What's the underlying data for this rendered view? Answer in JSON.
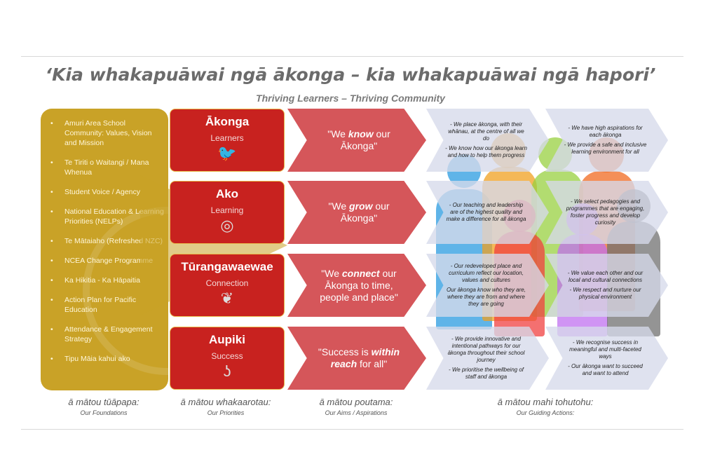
{
  "title": "‘Kia whakapuāwai ngā ākonga – kia whakapuāwai ngā hapori’",
  "subtitle": "Thriving Learners – Thriving Community",
  "foundations": [
    "Amuri Area School Community: Values, Vision and Mission",
    "Te Tiriti o Waitangi / Mana Whenua",
    "Student Voice / Agency",
    "National Education & Learning Priorities (NELPs)",
    "Te Mātaiaho (Refreshed NZC)",
    "NCEA Change Programme",
    "Ka Hikitia - Ka Hāpaitia",
    "Action Plan for Pacific Education",
    "Attendance & Engagement Strategy",
    "Tipu Māia kahui ako"
  ],
  "rows": [
    {
      "title": "Ākonga",
      "sub": "Learners",
      "icon": "bird-icon",
      "aim": [
        "\"We ",
        "know",
        " our Ākonga\""
      ],
      "actions1": [
        "- We place ākonga, with their whānau, at the centre of all we do",
        "- We know how our ākonga learn and how to help them progress"
      ],
      "actions2": [
        "- We have high aspirations for each ākonga",
        "- We provide a safe and inclusive learning environment for all"
      ]
    },
    {
      "title": "Ako",
      "sub": "Learning",
      "icon": "koru-spiral-icon",
      "aim": [
        "\"We ",
        "grow",
        " our Ākonga\""
      ],
      "actions1": [
        "- Our teaching and leadership are of the highest quality and make a difference for all ākonga"
      ],
      "actions2": [
        "- We select pedagogies and programmes that are engaging, foster progress and develop curiosity"
      ]
    },
    {
      "title": "Tūrangawaewae",
      "sub": "Connection",
      "icon": "pendant-icon",
      "aim": [
        "\"We ",
        "connect",
        " our Ākonga to time, people and place\""
      ],
      "actions1": [
        "- Our redeveloped place and curriculum reflect our location, values and cultures",
        "Our ākonga know who they are, where they are from and where they are going"
      ],
      "actions2": [
        "- We value each other and our local and cultural connections",
        "- We respect and nurture our physical environment"
      ]
    },
    {
      "title": "Aupiki",
      "sub": "Success",
      "icon": "hook-icon",
      "aim": [
        "\"Success is ",
        "within reach",
        " for all\""
      ],
      "actions1": [
        "- We provide innovative and intentional pathways for our ākonga throughout their school journey",
        "- We prioritise the wellbeing of staff and ākonga"
      ],
      "actions2": [
        "- We recognise success in meaningful and multi-faceted ways",
        "- Our ākonga want to succeed and want to attend"
      ]
    }
  ],
  "labels": [
    {
      "m": "ā mātou tūāpapa:",
      "e": "Our Foundations"
    },
    {
      "m": "ā mātou whakaarotau:",
      "e": "Our Priorities"
    },
    {
      "m": "ā mātou poutama:",
      "e": "Our Aims / Aspirations"
    },
    {
      "m": "ā mātou mahi tohutohu:",
      "e": "Our Guiding Actions:"
    }
  ],
  "colors": {
    "gold": "#c9a227",
    "red": "#c8221f",
    "aim": "#d5565a",
    "action": "#d6daea"
  }
}
